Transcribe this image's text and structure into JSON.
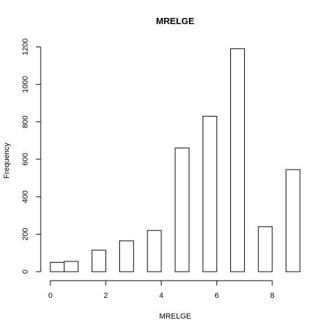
{
  "chart_data": {
    "type": "bar",
    "title": "MRELGE",
    "xlabel": "MRELGE",
    "ylabel": "Frequency",
    "xlim": [
      0,
      9
    ],
    "ylim": [
      0,
      1200
    ],
    "x_ticks": [
      "0",
      "2",
      "4",
      "6",
      "8"
    ],
    "y_ticks": [
      "0",
      "200",
      "400",
      "600",
      "800",
      "1000",
      "1200"
    ],
    "bins": [
      {
        "start": 0.0,
        "end": 0.5,
        "value": 50
      },
      {
        "start": 0.5,
        "end": 1.0,
        "value": 55
      },
      {
        "start": 1.0,
        "end": 1.5,
        "value": 0
      },
      {
        "start": 1.5,
        "end": 2.0,
        "value": 115
      },
      {
        "start": 2.0,
        "end": 2.5,
        "value": 0
      },
      {
        "start": 2.5,
        "end": 3.0,
        "value": 165
      },
      {
        "start": 3.0,
        "end": 3.5,
        "value": 0
      },
      {
        "start": 3.5,
        "end": 4.0,
        "value": 220
      },
      {
        "start": 4.0,
        "end": 4.5,
        "value": 0
      },
      {
        "start": 4.5,
        "end": 5.0,
        "value": 660
      },
      {
        "start": 5.0,
        "end": 5.5,
        "value": 0
      },
      {
        "start": 5.5,
        "end": 6.0,
        "value": 830
      },
      {
        "start": 6.0,
        "end": 6.5,
        "value": 0
      },
      {
        "start": 6.5,
        "end": 7.0,
        "value": 1190
      },
      {
        "start": 7.0,
        "end": 7.5,
        "value": 0
      },
      {
        "start": 7.5,
        "end": 8.0,
        "value": 240
      },
      {
        "start": 8.0,
        "end": 8.5,
        "value": 0
      },
      {
        "start": 8.5,
        "end": 9.0,
        "value": 545
      }
    ],
    "grid": false,
    "legend": "none",
    "colors": {
      "bar_fill": "#ffffff",
      "bar_stroke": "#000000"
    }
  }
}
